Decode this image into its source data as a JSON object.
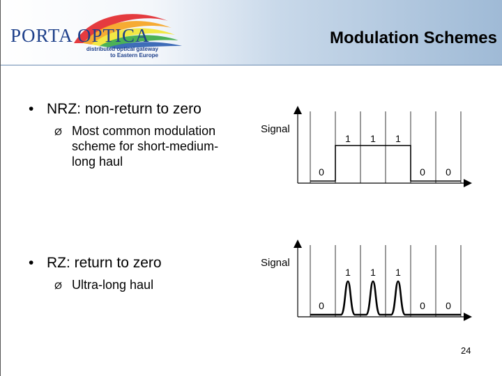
{
  "header": {
    "logo_text": "PORTA OPTICA",
    "logo_sub_line1": "distributed optical gateway",
    "logo_sub_line2": "to Eastern Europe",
    "title": "Modulation Schemes"
  },
  "bullets": {
    "nrz": {
      "marker": "•",
      "text": "NRZ: non-return to zero",
      "sub_marker": "Ø",
      "sub_lines": [
        "Most common modulation",
        "scheme for short-medium-",
        "long haul"
      ]
    },
    "rz": {
      "marker": "•",
      "text": "RZ: return to zero",
      "sub_marker": "Ø",
      "sub_lines": [
        "Ultra-long haul"
      ]
    }
  },
  "diagram_nrz": {
    "axis_label": "Signal",
    "bits": [
      "0",
      "1",
      "1",
      "1",
      "0",
      "0"
    ]
  },
  "diagram_rz": {
    "axis_label": "Signal",
    "bits": [
      "0",
      "1",
      "1",
      "1",
      "0",
      "0"
    ]
  },
  "footer": {
    "page_number": "24"
  }
}
